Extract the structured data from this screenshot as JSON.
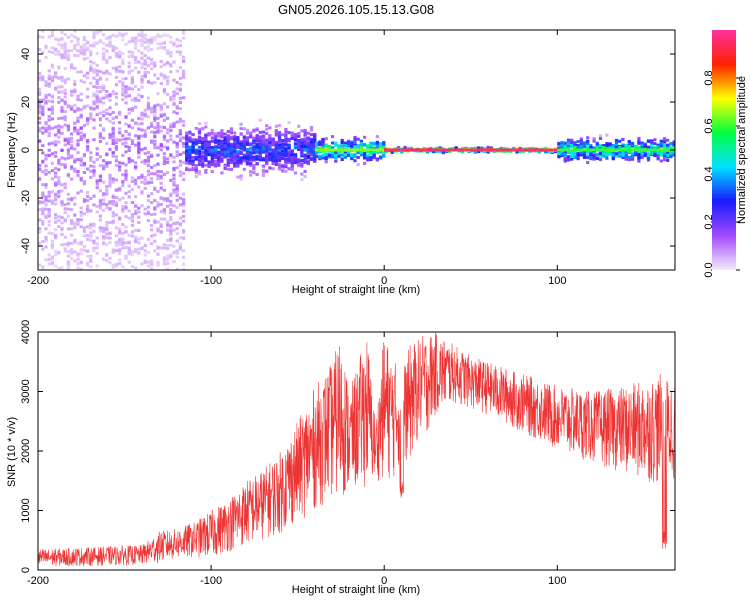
{
  "page_title": "GN05.2026.105.15.13.G08",
  "chart_data": [
    {
      "type": "heatmap",
      "title": "GN05.2026.105.15.13.G08",
      "xlabel": "Height of straight line (km)",
      "ylabel": "Frequency (Hz)",
      "xlim": [
        -200,
        168
      ],
      "ylim": [
        -50,
        50
      ],
      "xticks": [
        -200,
        -100,
        0,
        100
      ],
      "yticks": [
        -40,
        -20,
        0,
        20,
        40
      ],
      "colorbar": {
        "label": "Normalized spectral amplitude",
        "range": [
          0,
          1
        ],
        "ticks": [
          0,
          0.2,
          0.4,
          0.6,
          0.8
        ],
        "colors": [
          "#f4e9f8",
          "#a24bff",
          "#1a1aff",
          "#00e0ff",
          "#00ff40",
          "#ffff00",
          "#ff2000",
          "#ff30a0"
        ]
      },
      "regions": [
        {
          "x": [
            -200,
            -115
          ],
          "freq_spread": 50,
          "amplitude": 0.15
        },
        {
          "x": [
            -115,
            -40
          ],
          "freq_spread": 10,
          "amplitude": 0.35
        },
        {
          "x": [
            -40,
            0
          ],
          "freq_spread": 5,
          "amplitude": 0.65
        },
        {
          "x": [
            0,
            100
          ],
          "freq_spread": 1,
          "amplitude": 0.95
        },
        {
          "x": [
            100,
            168
          ],
          "freq_spread": 5,
          "amplitude": 0.6
        }
      ]
    },
    {
      "type": "line",
      "xlabel": "Height of straight line (km)",
      "ylabel": "SNR (10 * v/v)",
      "xlim": [
        -200,
        168
      ],
      "ylim": [
        0,
        4000
      ],
      "xticks": [
        -200,
        -100,
        0,
        100
      ],
      "yticks": [
        0,
        1000,
        2000,
        3000,
        4000
      ],
      "color": "#ee3333",
      "envelope": {
        "x": [
          -200,
          -140,
          -130,
          -120,
          -110,
          -100,
          -90,
          -80,
          -70,
          -60,
          -50,
          -40,
          -30,
          -25,
          -20,
          -10,
          -5,
          0,
          5,
          10,
          15,
          20,
          25,
          30,
          40,
          50,
          60,
          80,
          100,
          120,
          140,
          160,
          168
        ],
        "low": [
          50,
          80,
          120,
          180,
          200,
          200,
          300,
          400,
          500,
          600,
          800,
          1000,
          1200,
          1200,
          1300,
          1400,
          1500,
          1500,
          1500,
          1800,
          1800,
          2200,
          2300,
          2600,
          2800,
          2700,
          2600,
          2300,
          2000,
          1800,
          1600,
          1400,
          1500
        ],
        "high": [
          350,
          420,
          650,
          700,
          800,
          1000,
          1200,
          1500,
          1700,
          2000,
          2500,
          3100,
          3500,
          4000,
          3000,
          4000,
          2500,
          4000,
          3600,
          3300,
          3800,
          3900,
          4000,
          4000,
          3800,
          3600,
          3500,
          3300,
          3100,
          3000,
          3100,
          3300,
          3200
        ]
      },
      "dips": [
        {
          "x": 10,
          "y": 1200
        },
        {
          "x": 162,
          "y": 350
        }
      ]
    }
  ]
}
